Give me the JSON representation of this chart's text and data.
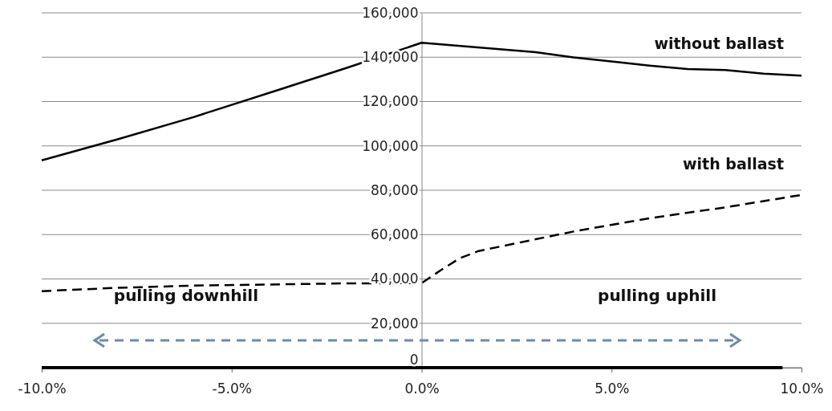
{
  "chart_data": {
    "type": "line",
    "xlim": [
      -10,
      10
    ],
    "ylim": [
      0,
      160000
    ],
    "xticks": [
      {
        "value": -10,
        "label": "-10.0%"
      },
      {
        "value": -5,
        "label": "-5.0%"
      },
      {
        "value": 0,
        "label": "0.0%"
      },
      {
        "value": 5,
        "label": "5.0%"
      },
      {
        "value": 10,
        "label": "10.0%"
      }
    ],
    "yticks": [
      {
        "value": 0,
        "label": "0"
      },
      {
        "value": 20000,
        "label": "20,000"
      },
      {
        "value": 40000,
        "label": "40,000"
      },
      {
        "value": 60000,
        "label": "60,000"
      },
      {
        "value": 80000,
        "label": "80,000"
      },
      {
        "value": 100000,
        "label": "100,000"
      },
      {
        "value": 120000,
        "label": "120,000"
      },
      {
        "value": 140000,
        "label": "140,000"
      },
      {
        "value": 160000,
        "label": "160,000"
      }
    ],
    "grid": "y",
    "marker": "none",
    "series": [
      {
        "name": "without ballast",
        "color": "#000000",
        "line_style": "solid",
        "x": [
          -10,
          -8,
          -6,
          -5,
          -4,
          -2,
          0,
          3,
          4,
          6,
          7,
          8,
          9,
          10
        ],
        "values": [
          93500,
          103000,
          113000,
          118500,
          124000,
          135000,
          146500,
          142300,
          139900,
          136200,
          134700,
          134200,
          132600,
          131700
        ]
      },
      {
        "name": "with ballast",
        "color": "#000000",
        "line_style": "dashed",
        "x": [
          -10,
          -8,
          -6,
          -4,
          -2,
          0,
          0.5,
          1,
          1.5,
          3,
          4,
          6,
          8,
          10
        ],
        "values": [
          34500,
          36000,
          37000,
          37500,
          38000,
          38100,
          43900,
          49300,
          52600,
          57900,
          61400,
          67400,
          72300,
          77900
        ]
      },
      {
        "color": "#000000",
        "line_style": "solid",
        "x": [
          -10,
          9.5
        ],
        "values": [
          0,
          0
        ]
      }
    ],
    "annotations": [
      "pulling downhill",
      "pulling uphill"
    ]
  }
}
